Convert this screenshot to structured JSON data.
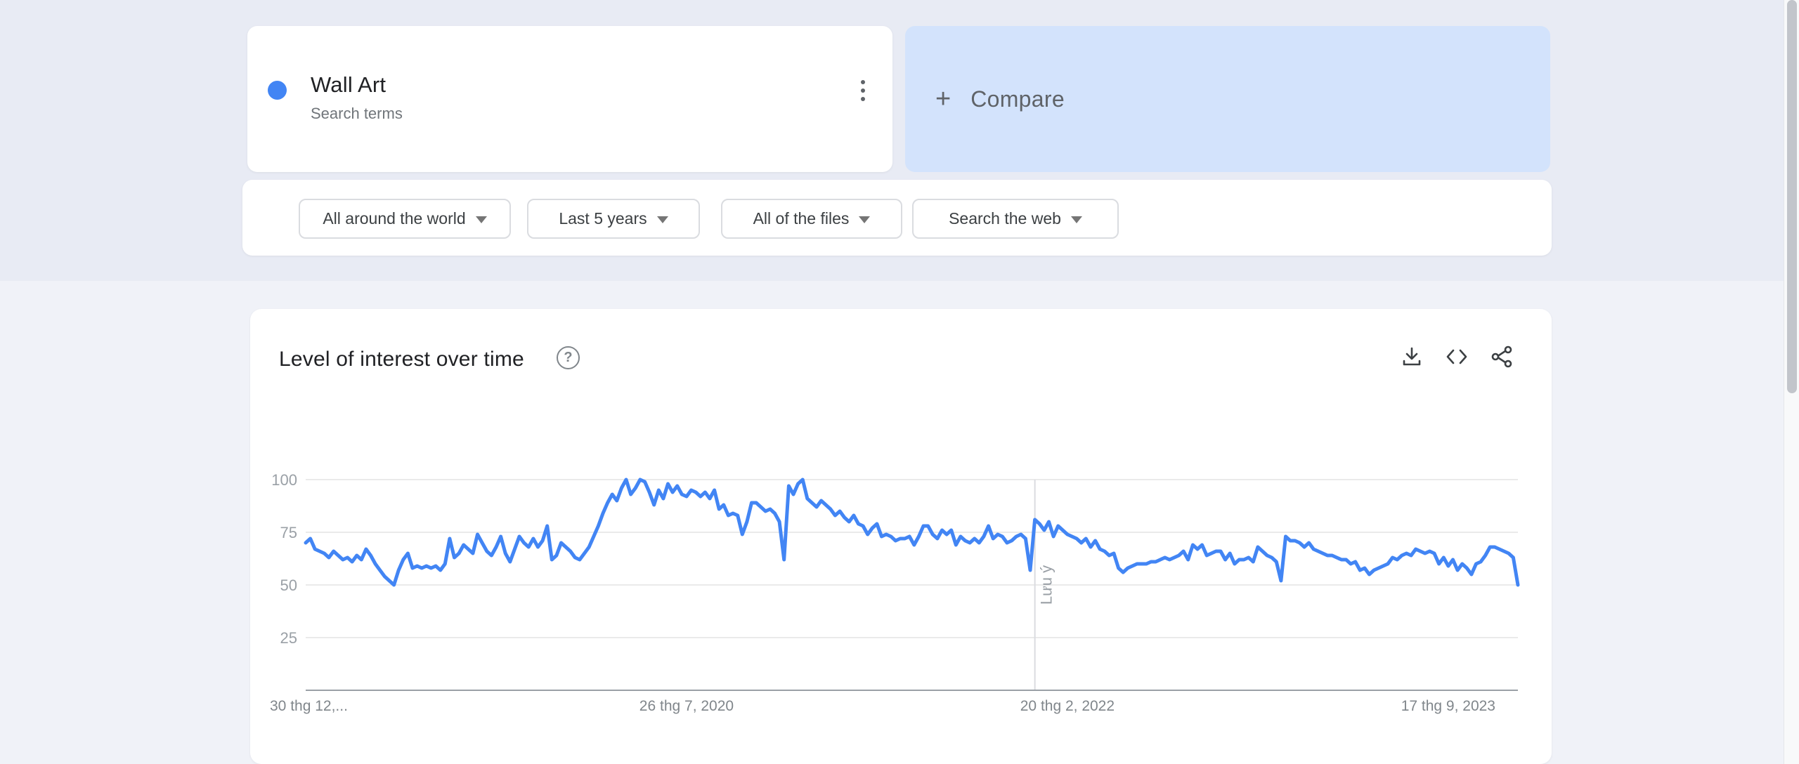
{
  "term_card": {
    "term": "Wall Art",
    "subtitle": "Search terms",
    "dot_color": "#4285f4"
  },
  "compare_card": {
    "plus": "+",
    "label": "Compare",
    "background": "#d3e3fc"
  },
  "filters": [
    {
      "label": "All around the world"
    },
    {
      "label": "Last 5 years"
    },
    {
      "label": "All of the files"
    },
    {
      "label": "Search the web"
    }
  ],
  "chart_card": {
    "title": "Level of interest over time",
    "help_glyph": "?"
  },
  "chart_data": {
    "type": "line",
    "title": "Level of interest over time",
    "series_name": "Wall Art",
    "line_color": "#4285f4",
    "grid_color": "#e3e3e3",
    "axis_color": "#9aa0a6",
    "label_color": "#9aa0a6",
    "x_label_color": "#80868b",
    "ylim": [
      0,
      100
    ],
    "yticks": [
      25,
      50,
      75,
      100
    ],
    "grid": true,
    "x_tick_labels": [
      "30 thg 12,...",
      "26 thg 7, 2020",
      "20 thg 2, 2022",
      "17 thg 9, 2023"
    ],
    "x_tick_weeks": [
      0,
      82,
      164,
      246
    ],
    "annotation": {
      "label": "Lưu ý",
      "week": 157,
      "line_color": "#dadce0"
    },
    "values": [
      70,
      72,
      67,
      66,
      65,
      63,
      66,
      64,
      62,
      63,
      61,
      64,
      62,
      67,
      64,
      60,
      57,
      54,
      52,
      50,
      57,
      62,
      65,
      58,
      59,
      58,
      59,
      58,
      59,
      57,
      60,
      72,
      63,
      65,
      69,
      67,
      65,
      74,
      70,
      66,
      64,
      68,
      73,
      65,
      61,
      67,
      73,
      70,
      68,
      72,
      68,
      71,
      78,
      62,
      64,
      70,
      68,
      66,
      63,
      62,
      65,
      68,
      73,
      78,
      84,
      89,
      93,
      90,
      96,
      100,
      93,
      96,
      100,
      99,
      94,
      88,
      95,
      91,
      98,
      94,
      97,
      93,
      92,
      95,
      94,
      92,
      94,
      91,
      95,
      86,
      88,
      83,
      84,
      83,
      74,
      80,
      89,
      89,
      87,
      85,
      86,
      84,
      80,
      62,
      97,
      93,
      98,
      100,
      91,
      89,
      87,
      90,
      88,
      86,
      83,
      85,
      82,
      80,
      83,
      79,
      78,
      74,
      77,
      79,
      73,
      74,
      73,
      71,
      72,
      72,
      73,
      69,
      73,
      78,
      78,
      74,
      72,
      76,
      74,
      76,
      69,
      73,
      71,
      70,
      72,
      70,
      73,
      78,
      72,
      74,
      73,
      70,
      71,
      73,
      74,
      72,
      57,
      81,
      79,
      76,
      80,
      73,
      78,
      76,
      74,
      73,
      72,
      70,
      72,
      68,
      71,
      67,
      66,
      64,
      65,
      58,
      56,
      58,
      59,
      60,
      60,
      60,
      61,
      61,
      62,
      63,
      62,
      63,
      64,
      66,
      62,
      69,
      67,
      69,
      64,
      65,
      66,
      66,
      62,
      65,
      60,
      62,
      62,
      63,
      61,
      68,
      66,
      64,
      63,
      61,
      52,
      73,
      71,
      71,
      70,
      68,
      70,
      67,
      66,
      65,
      64,
      64,
      63,
      62,
      62,
      60,
      61,
      57,
      58,
      55,
      57,
      58,
      59,
      60,
      63,
      62,
      64,
      65,
      64,
      67,
      66,
      65,
      66,
      65,
      60,
      63,
      59,
      62,
      57,
      60,
      58,
      55,
      60,
      61,
      64,
      68,
      68,
      67,
      66,
      65,
      63,
      50
    ]
  }
}
